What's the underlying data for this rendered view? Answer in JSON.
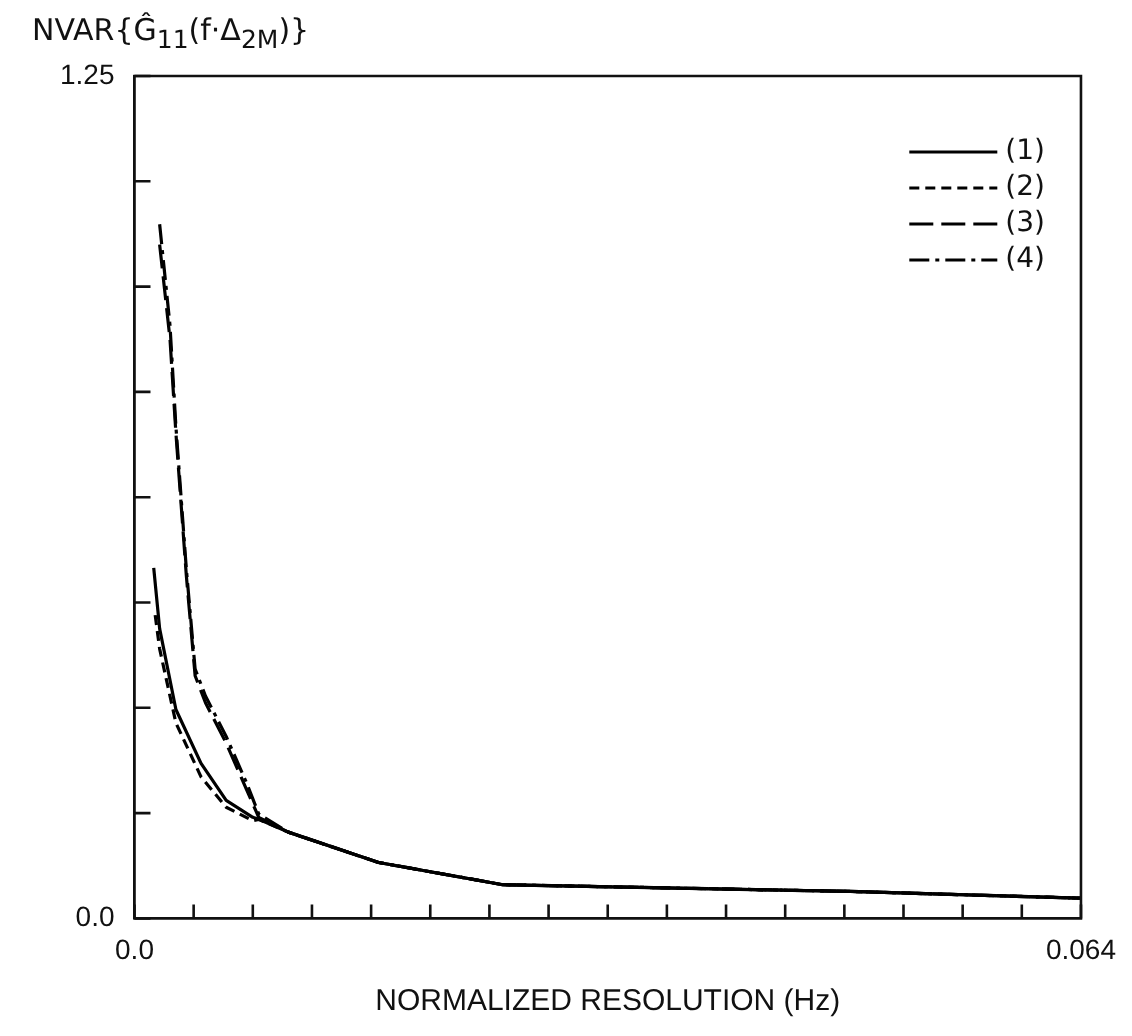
{
  "chart_data": {
    "type": "line",
    "ylabel": "NVAR{Ĝ$_{11}$(f·Δ$_{2M}$)}",
    "xlabel": "NORMALIZED RESOLUTION (Hz)",
    "xlim": [
      0,
      0.064
    ],
    "xticks": [
      {
        "value": 0,
        "label": "0.0"
      },
      {
        "value": 0.004,
        "label": null
      },
      {
        "value": 0.008,
        "label": null
      },
      {
        "value": 0.012,
        "label": null
      },
      {
        "value": 0.016,
        "label": null
      },
      {
        "value": 0.02,
        "label": null
      },
      {
        "value": 0.024,
        "label": null
      },
      {
        "value": 0.028,
        "label": null
      },
      {
        "value": 0.032,
        "label": null
      },
      {
        "value": 0.036,
        "label": null
      },
      {
        "value": 0.04,
        "label": null
      },
      {
        "value": 0.044,
        "label": null
      },
      {
        "value": 0.048,
        "label": null
      },
      {
        "value": 0.052,
        "label": null
      },
      {
        "value": 0.056,
        "label": null
      },
      {
        "value": 0.06,
        "label": null
      },
      0.064
    ],
    "ylim": [
      0,
      1.25
    ],
    "yticks": [
      {
        "value": 0,
        "label": "0.0"
      },
      {
        "value": 0.15625,
        "label": null
      },
      {
        "value": 0.3125,
        "label": null
      },
      {
        "value": 0.46875,
        "label": null
      },
      {
        "value": 0.625,
        "label": null
      },
      {
        "value": 0.78125,
        "label": null
      },
      {
        "value": 0.9375,
        "label": null
      },
      {
        "value": 1.09375,
        "label": null
      },
      1.25
    ],
    "legend": "top right",
    "marker": "none",
    "series": [
      {
        "name": "(1)",
        "color": "#000000",
        "line_style": "solid",
        "x": [
          0.0013,
          0.0017,
          0.0028,
          0.0045,
          0.0062,
          0.008,
          0.0084,
          0.0104,
          0.0165,
          0.0249,
          0.0366,
          0.0484,
          0.064
        ],
        "values": [
          0.52,
          0.43,
          0.31,
          0.23,
          0.175,
          0.15,
          0.147,
          0.128,
          0.083,
          0.05,
          0.045,
          0.04,
          0.03
        ]
      },
      {
        "name": "(2)",
        "color": "#000000",
        "line_style": "dashed",
        "x": [
          0.0014,
          0.0017,
          0.0028,
          0.0045,
          0.0062,
          0.008,
          0.0084,
          0.0104,
          0.0165,
          0.0249,
          0.0366,
          0.0484,
          0.064
        ],
        "values": [
          0.45,
          0.4,
          0.29,
          0.21,
          0.165,
          0.145,
          0.147,
          0.128,
          0.083,
          0.05,
          0.045,
          0.04,
          0.03
        ]
      },
      {
        "name": "(3)",
        "color": "#000000",
        "line_style": "longdash",
        "x": [
          0.0017,
          0.0024,
          0.0028,
          0.0035,
          0.0041,
          0.0048,
          0.0062,
          0.0076,
          0.0084,
          0.0104,
          0.0165,
          0.0249,
          0.0366,
          0.0484,
          0.064
        ],
        "values": [
          1.0,
          0.86,
          0.72,
          0.51,
          0.36,
          0.32,
          0.26,
          0.19,
          0.15,
          0.128,
          0.083,
          0.05,
          0.045,
          0.04,
          0.03
        ]
      },
      {
        "name": "(4)",
        "color": "#000000",
        "line_style": "dashdot",
        "x": [
          0.0017,
          0.0024,
          0.0028,
          0.0035,
          0.0041,
          0.0048,
          0.0062,
          0.0076,
          0.0084,
          0.0104,
          0.0165,
          0.0249,
          0.0366,
          0.0484,
          0.064
        ],
        "values": [
          1.03,
          0.88,
          0.73,
          0.52,
          0.37,
          0.33,
          0.27,
          0.2,
          0.155,
          0.128,
          0.083,
          0.05,
          0.045,
          0.04,
          0.03
        ]
      }
    ]
  }
}
